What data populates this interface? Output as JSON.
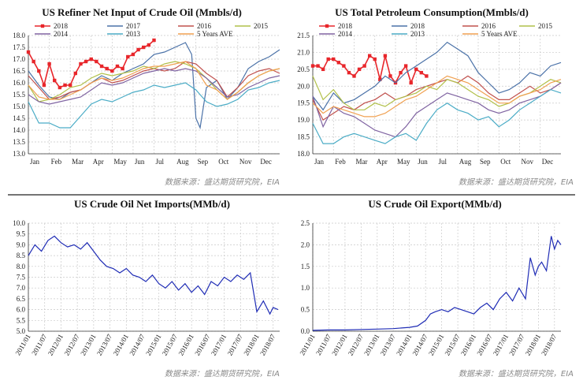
{
  "sources": [
    "数据来源：盛达期货研究院，EIA",
    "数据来源：盛达期货研究院，EIA",
    "数据来源：盛达期货研究院，EIA",
    "数据来源：盛达期货研究院，EIA"
  ],
  "chart_data": [
    {
      "type": "line",
      "title": "US Refiner Net Input of Crude Oil (Mmbls/d)",
      "xlabel": "",
      "ylabel": "",
      "categories": [
        "Jan",
        "Feb",
        "Mar",
        "Apr",
        "May",
        "Jun",
        "Jul",
        "Aug",
        "Sep",
        "Oct",
        "Nov",
        "Dec"
      ],
      "yticks": [
        "13.0",
        "13.5",
        "14.0",
        "14.5",
        "15.0",
        "15.5",
        "16.0",
        "16.5",
        "17.0",
        "17.5",
        "18.0"
      ],
      "ylim": [
        13,
        18
      ],
      "legend_position": "top",
      "series": [
        {
          "name": "2018",
          "color": "#e8262b",
          "marker": "square",
          "x": [
            0,
            0.25,
            0.5,
            0.75,
            1,
            1.25,
            1.5,
            1.75,
            2,
            2.25,
            2.5,
            2.75,
            3,
            3.25,
            3.5,
            3.75,
            4,
            4.25,
            4.5,
            4.75,
            5,
            5.25,
            5.5,
            5.75,
            6
          ],
          "y": [
            17.3,
            16.9,
            16.5,
            15.9,
            16.8,
            16.1,
            15.8,
            15.9,
            15.9,
            16.4,
            16.8,
            16.9,
            17,
            16.9,
            16.7,
            16.6,
            16.5,
            16.7,
            16.6,
            17.1,
            17.2,
            17.4,
            17.5,
            17.6,
            17.8
          ]
        },
        {
          "name": "2017",
          "color": "#4b72a8",
          "x": [
            0,
            0.5,
            1,
            1.5,
            2,
            2.5,
            3,
            3.5,
            4,
            4.5,
            5,
            5.5,
            6,
            6.5,
            7,
            7.5,
            7.8,
            8,
            8.2,
            8.5,
            9,
            9.5,
            10,
            10.5,
            11,
            11.5,
            12
          ],
          "y": [
            16.5,
            15.9,
            15.4,
            15.3,
            15.6,
            15.7,
            16,
            16.3,
            16.1,
            16.4,
            16.6,
            16.8,
            17.2,
            17.3,
            17.5,
            17.7,
            17.2,
            14.5,
            14.1,
            15.8,
            16.1,
            15.3,
            15.8,
            16.6,
            16.9,
            17.1,
            17.4
          ]
        },
        {
          "name": "2016",
          "color": "#c0504d",
          "x": [
            0,
            0.5,
            1,
            1.5,
            2,
            2.5,
            3,
            3.5,
            4,
            4.5,
            5,
            5.5,
            6,
            6.5,
            7,
            7.5,
            8,
            8.5,
            9,
            9.5,
            10,
            10.5,
            11,
            11.5,
            12
          ],
          "y": [
            16.3,
            15.8,
            15.3,
            15.4,
            15.6,
            15.7,
            16,
            16.2,
            16,
            16.1,
            16.3,
            16.5,
            16.6,
            16.5,
            16.6,
            16.9,
            16.8,
            16.4,
            16.1,
            15.4,
            15.8,
            16.3,
            16.5,
            16.6,
            16.4
          ]
        },
        {
          "name": "2015",
          "color": "#b1c04a",
          "x": [
            0,
            0.5,
            1,
            1.5,
            2,
            2.5,
            3,
            3.5,
            4,
            4.5,
            5,
            5.5,
            6,
            6.5,
            7,
            7.5,
            8,
            8.5,
            9,
            9.5,
            10,
            10.5,
            11,
            11.5,
            12
          ],
          "y": [
            15.9,
            15.2,
            15.3,
            15.5,
            15.8,
            15.9,
            16.2,
            16.4,
            16.3,
            16.4,
            16.5,
            16.7,
            16.6,
            16.8,
            16.9,
            16.8,
            16.6,
            16.2,
            15.7,
            15.3,
            15.6,
            16,
            16.3,
            16.5,
            16.6
          ]
        },
        {
          "name": "2014",
          "color": "#8064a2",
          "x": [
            0,
            0.5,
            1,
            1.5,
            2,
            2.5,
            3,
            3.5,
            4,
            4.5,
            5,
            5.5,
            6,
            6.5,
            7,
            7.5,
            8,
            8.5,
            9,
            9.5,
            10,
            10.5,
            11,
            11.5,
            12
          ],
          "y": [
            15.5,
            15.2,
            15.1,
            15.2,
            15.3,
            15.4,
            15.7,
            16,
            15.9,
            16,
            16.2,
            16.4,
            16.5,
            16.6,
            16.5,
            16.6,
            16.5,
            16.2,
            15.8,
            15.4,
            15.5,
            15.8,
            16,
            16.2,
            16.3
          ]
        },
        {
          "name": "2013",
          "color": "#4bacc6",
          "x": [
            0,
            0.5,
            1,
            1.5,
            2,
            2.5,
            3,
            3.5,
            4,
            4.5,
            5,
            5.5,
            6,
            6.5,
            7,
            7.5,
            8,
            8.5,
            9,
            9.5,
            10,
            10.5,
            11,
            11.5,
            12
          ],
          "y": [
            15.2,
            14.3,
            14.3,
            14.1,
            14.1,
            14.6,
            15.1,
            15.3,
            15.2,
            15.4,
            15.6,
            15.7,
            15.9,
            15.8,
            15.9,
            16,
            15.7,
            15.2,
            15,
            15.1,
            15.3,
            15.7,
            15.8,
            16,
            16.1
          ]
        },
        {
          "name": "5 Years AVE",
          "color": "#f0a050",
          "x": [
            0,
            0.5,
            1,
            1.5,
            2,
            2.5,
            3,
            3.5,
            4,
            4.5,
            5,
            5.5,
            6,
            6.5,
            7,
            7.5,
            8,
            8.5,
            9,
            9.5,
            10,
            10.5,
            11,
            11.5,
            12
          ],
          "y": [
            15.9,
            15.4,
            15.3,
            15.3,
            15.5,
            15.7,
            16,
            16.2,
            16.1,
            16.2,
            16.4,
            16.6,
            16.7,
            16.7,
            16.8,
            16.9,
            16.6,
            15.9,
            15.7,
            15.3,
            15.6,
            16,
            16.3,
            16.5,
            16.6
          ]
        }
      ]
    },
    {
      "type": "line",
      "title": "US Total Petroleum Consumption(Mmbls/d)",
      "xlabel": "",
      "ylabel": "",
      "categories": [
        "Jan",
        "Feb",
        "Mar",
        "Apr",
        "May",
        "Jun",
        "Jul",
        "Aug",
        "Sep",
        "Oct",
        "Nov",
        "Dec"
      ],
      "yticks": [
        "18.0",
        "18.5",
        "19.0",
        "19.5",
        "20.0",
        "20.5",
        "21.0",
        "21.5"
      ],
      "ylim": [
        18,
        21.5
      ],
      "legend_position": "top",
      "series": [
        {
          "name": "2018",
          "color": "#e8262b",
          "marker": "square",
          "x": [
            0,
            0.25,
            0.5,
            0.75,
            1,
            1.25,
            1.5,
            1.75,
            2,
            2.25,
            2.5,
            2.75,
            3,
            3.25,
            3.5,
            3.75,
            4,
            4.25,
            4.5,
            4.75,
            5,
            5.25,
            5.5
          ],
          "y": [
            20.6,
            20.6,
            20.5,
            20.8,
            20.8,
            20.7,
            20.6,
            20.4,
            20.3,
            20.5,
            20.6,
            20.9,
            20.8,
            20.2,
            20.9,
            20.3,
            20.1,
            20.4,
            20.6,
            20.1,
            20.5,
            20.4,
            20.3
          ]
        },
        {
          "name": "2018",
          "color": "#4b72a8",
          "x": [
            0,
            0.5,
            1,
            1.5,
            2,
            2.5,
            3,
            3.5,
            4,
            4.5,
            5,
            5.5,
            6,
            6.5,
            7,
            7.5,
            8,
            8.5,
            9,
            9.5,
            10,
            10.5,
            11,
            11.5,
            12
          ],
          "y": [
            19.7,
            19.3,
            19.8,
            19.5,
            19.6,
            19.8,
            20,
            20.3,
            20.1,
            20.4,
            20.6,
            20.8,
            21,
            21.3,
            21.1,
            20.9,
            20.4,
            20.1,
            19.8,
            19.9,
            20.1,
            20.4,
            20.3,
            20.6,
            20.7
          ]
        },
        {
          "name": "2016",
          "color": "#c0504d",
          "x": [
            0,
            0.5,
            1,
            1.5,
            2,
            2.5,
            3,
            3.5,
            4,
            4.5,
            5,
            5.5,
            6,
            6.5,
            7,
            7.5,
            8,
            8.5,
            9,
            9.5,
            10,
            10.5,
            11,
            11.5,
            12
          ],
          "y": [
            19.6,
            19,
            19.2,
            19.4,
            19.3,
            19.5,
            19.6,
            19.8,
            19.6,
            19.7,
            19.9,
            20,
            20.1,
            20.2,
            20.1,
            20.3,
            20.1,
            19.8,
            19.6,
            19.6,
            19.8,
            20,
            19.8,
            19.9,
            20.1
          ]
        },
        {
          "name": "2015",
          "color": "#b1c04a",
          "x": [
            0,
            0.5,
            1,
            1.5,
            2,
            2.5,
            3,
            3.5,
            4,
            4.5,
            5,
            5.5,
            6,
            6.5,
            7,
            7.5,
            8,
            8.5,
            9,
            9.5,
            10,
            10.5,
            11,
            11.5,
            12
          ],
          "y": [
            20.3,
            19.6,
            19.9,
            19.5,
            19.3,
            19.3,
            19.5,
            19.4,
            19.6,
            19.7,
            19.8,
            20,
            19.9,
            20.2,
            20.1,
            19.9,
            19.7,
            19.6,
            19.4,
            19.5,
            19.7,
            19.8,
            20,
            20.2,
            20.1
          ]
        },
        {
          "name": "2014",
          "color": "#8064a2",
          "x": [
            0,
            0.5,
            1,
            1.5,
            2,
            2.5,
            3,
            3.5,
            4,
            4.5,
            5,
            5.5,
            6,
            6.5,
            7,
            7.5,
            8,
            8.5,
            9,
            9.5,
            10,
            10.5,
            11,
            11.5,
            12
          ],
          "y": [
            19.7,
            18.8,
            19.4,
            19.2,
            19.1,
            18.9,
            18.7,
            18.6,
            18.5,
            18.8,
            19.2,
            19.4,
            19.6,
            19.8,
            19.7,
            19.6,
            19.5,
            19.3,
            19.2,
            19.3,
            19.5,
            19.6,
            19.7,
            19.9,
            20.1
          ]
        },
        {
          "name": "2013",
          "color": "#4bacc6",
          "x": [
            0,
            0.5,
            1,
            1.5,
            2,
            2.5,
            3,
            3.5,
            4,
            4.5,
            5,
            5.5,
            6,
            6.5,
            7,
            7.5,
            8,
            8.5,
            9,
            9.5,
            10,
            10.5,
            11,
            11.5,
            12
          ],
          "y": [
            18.9,
            18.3,
            18.3,
            18.5,
            18.6,
            18.5,
            18.4,
            18.3,
            18.5,
            18.6,
            18.4,
            18.9,
            19.3,
            19.5,
            19.3,
            19.2,
            19.0,
            19.1,
            18.8,
            19.0,
            19.3,
            19.5,
            19.7,
            19.9,
            19.8
          ]
        },
        {
          "name": "5 Years AVE",
          "color": "#f0a050",
          "x": [
            0,
            0.5,
            1,
            1.5,
            2,
            2.5,
            3,
            3.5,
            4,
            4.5,
            5,
            5.5,
            6,
            6.5,
            7,
            7.5,
            8,
            8.5,
            9,
            9.5,
            10,
            10.5,
            11,
            11.5,
            12
          ],
          "y": [
            19.5,
            19.2,
            19.4,
            19.3,
            19.2,
            19.1,
            19.1,
            19.2,
            19.4,
            19.6,
            19.7,
            19.9,
            20.1,
            20.3,
            20.2,
            20.1,
            19.9,
            19.7,
            19.5,
            19.5,
            19.7,
            19.8,
            19.9,
            20.1,
            20.2
          ]
        }
      ]
    },
    {
      "type": "line",
      "title": "US Crude Oil Net Imports(MMb/d)",
      "xlabel": "",
      "ylabel": "",
      "categories": [
        "2011/01",
        "2011/07",
        "2012/01",
        "2012/07",
        "2013/01",
        "2013/07",
        "2014/01",
        "2014/07",
        "2015/01",
        "2015/07",
        "2016/01",
        "2016/07",
        "2017/01",
        "2017/07",
        "2018/01",
        "2018/07"
      ],
      "yticks": [
        "5.0",
        "5.5",
        "6.0",
        "6.5",
        "7.0",
        "7.5",
        "8.0",
        "8.5",
        "9.0",
        "9.5",
        "10.0"
      ],
      "ylim": [
        5,
        10
      ],
      "series": [
        {
          "name": "",
          "color": "#1f2cb5",
          "x": [
            0,
            0.4,
            0.8,
            1.2,
            1.6,
            2,
            2.4,
            2.8,
            3.2,
            3.6,
            4,
            4.4,
            4.8,
            5.2,
            5.6,
            6,
            6.4,
            6.8,
            7.2,
            7.6,
            8,
            8.4,
            8.8,
            9.2,
            9.6,
            10,
            10.4,
            10.8,
            11.2,
            11.6,
            12,
            12.4,
            12.8,
            13.2,
            13.6,
            14,
            14.4,
            14.8,
            15,
            15.3
          ],
          "y": [
            8.5,
            9,
            8.7,
            9.2,
            9.4,
            9.1,
            8.9,
            9.0,
            8.8,
            9.1,
            8.7,
            8.3,
            8.0,
            7.9,
            7.7,
            7.9,
            7.6,
            7.5,
            7.3,
            7.6,
            7.2,
            7.0,
            7.3,
            6.9,
            7.2,
            6.8,
            7.1,
            6.7,
            7.3,
            7.1,
            7.5,
            7.3,
            7.6,
            7.4,
            7.7,
            5.9,
            6.4,
            5.8,
            6.1,
            6.0
          ]
        }
      ]
    },
    {
      "type": "line",
      "title": "US Crude Oil Export(MMb/d)",
      "xlabel": "",
      "ylabel": "",
      "categories": [
        "2011/01",
        "2011/07",
        "2012/01",
        "2012/07",
        "2013/01",
        "2013/07",
        "2014/01",
        "2014/07",
        "2015/01",
        "2015/07",
        "2016/01",
        "2016/07",
        "2017/01",
        "2017/07",
        "2018/01",
        "2018/07"
      ],
      "yticks": [
        "0.0",
        "0.5",
        "1.0",
        "1.5",
        "2.0",
        "2.5"
      ],
      "ylim": [
        0,
        2.5
      ],
      "series": [
        {
          "name": "",
          "color": "#1f2cb5",
          "x": [
            0,
            1,
            2,
            3,
            4,
            5,
            6,
            6.5,
            7,
            7.3,
            7.6,
            8,
            8.4,
            8.8,
            9.2,
            9.6,
            10,
            10.4,
            10.8,
            11.2,
            11.6,
            12,
            12.4,
            12.8,
            13.2,
            13.5,
            13.8,
            14,
            14.2,
            14.5,
            14.8,
            15,
            15.2,
            15.4
          ],
          "y": [
            0.02,
            0.03,
            0.03,
            0.04,
            0.05,
            0.06,
            0.09,
            0.12,
            0.25,
            0.4,
            0.45,
            0.5,
            0.45,
            0.55,
            0.5,
            0.45,
            0.4,
            0.55,
            0.65,
            0.5,
            0.75,
            0.9,
            0.7,
            1.0,
            0.75,
            1.7,
            1.3,
            1.5,
            1.6,
            1.4,
            2.2,
            1.9,
            2.1,
            2.0
          ]
        }
      ]
    }
  ]
}
